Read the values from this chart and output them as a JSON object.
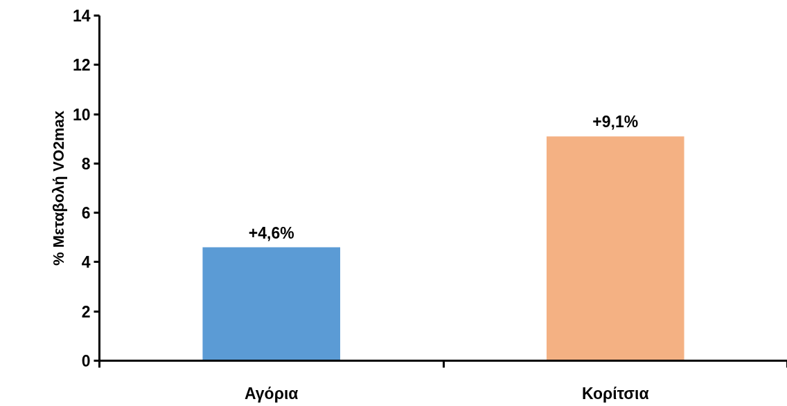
{
  "chart_data": {
    "type": "bar",
    "ylabel": "% Μεταβολή VO2max",
    "categories": [
      "Αγόρια",
      "Κορίτσια"
    ],
    "values": [
      4.6,
      9.1
    ],
    "colors": [
      "#5b9bd5",
      "#f4b183"
    ],
    "value_labels": [
      "+4,6%",
      "+9,1%"
    ],
    "ylim": [
      0,
      14
    ],
    "yticks": [
      0,
      2,
      4,
      6,
      8,
      10,
      12,
      14
    ],
    "grid": false
  }
}
